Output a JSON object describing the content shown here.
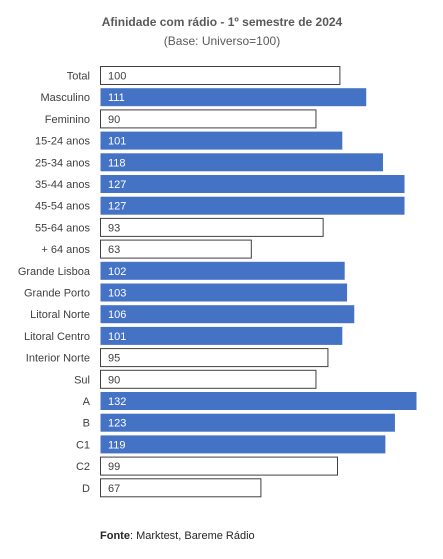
{
  "colors": {
    "highlight": "#4472C4",
    "below_fill": "#ffffff",
    "below_stroke": "#404040",
    "text_dark": "#404040"
  },
  "footer": {
    "source_label": "Fonte",
    "source_text": ": Marktest, Bareme Rádio"
  },
  "chart_data": {
    "type": "bar",
    "orientation": "horizontal",
    "title": "Afinidade com rádio - 1º semestre de 2024",
    "subtitle": "(Base: Universo=100)",
    "xlabel": "",
    "ylabel": "",
    "grid": false,
    "legend": "none",
    "xlim": [
      0,
      132
    ],
    "baseline": 100,
    "categories": [
      "Total",
      "Masculino",
      "Feminino",
      "15-24 anos",
      "25-34 anos",
      "35-44 anos",
      "45-54 anos",
      "55-64 anos",
      "+ 64  anos",
      "Grande Lisboa",
      "Grande Porto",
      "Litoral Norte",
      "Litoral Centro",
      "Interior Norte",
      "Sul",
      "A",
      "B",
      "C1",
      "C2",
      "D"
    ],
    "values": [
      100,
      111,
      90,
      101,
      118,
      127,
      127,
      93,
      63,
      102,
      103,
      106,
      101,
      95,
      90,
      132,
      123,
      119,
      99,
      67
    ]
  }
}
